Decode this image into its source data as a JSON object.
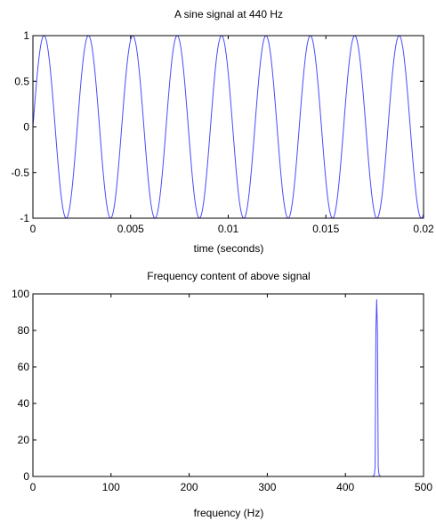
{
  "chart_data": [
    {
      "type": "line",
      "title": "A sine signal at 440 Hz",
      "xlabel": "time (seconds)",
      "ylabel": "",
      "xlim": [
        0,
        0.02
      ],
      "ylim": [
        -1,
        1
      ],
      "xticks": [
        0,
        0.005,
        0.01,
        0.015,
        0.02
      ],
      "xtick_labels": [
        "0",
        "0.005",
        "0.01",
        "0.015",
        "0.02"
      ],
      "yticks": [
        -1,
        -0.5,
        0,
        0.5,
        1
      ],
      "ytick_labels": [
        "-1",
        "-0.5",
        "0",
        "0.5",
        "1"
      ],
      "grid": false,
      "series": [
        {
          "frequency_hz": 440,
          "amplitude": 1,
          "color": "#4a4aff"
        }
      ]
    },
    {
      "type": "line",
      "title": "Frequency content of above signal",
      "xlabel": "frequency (Hz)",
      "ylabel": "",
      "xlim": [
        0,
        500
      ],
      "ylim": [
        0,
        100
      ],
      "xticks": [
        0,
        100,
        200,
        300,
        400,
        500
      ],
      "xtick_labels": [
        "0",
        "100",
        "200",
        "300",
        "400",
        "500"
      ],
      "yticks": [
        0,
        20,
        40,
        60,
        80,
        100
      ],
      "ytick_labels": [
        "0",
        "20",
        "40",
        "60",
        "80",
        "100"
      ],
      "grid": false,
      "series": [
        {
          "color": "#4a4aff",
          "x": [
            0,
            435,
            437,
            438,
            439,
            440,
            441,
            442,
            443,
            445,
            500
          ],
          "y": [
            0,
            0,
            1,
            5,
            80,
            97,
            80,
            5,
            1,
            0,
            0
          ]
        }
      ]
    }
  ]
}
